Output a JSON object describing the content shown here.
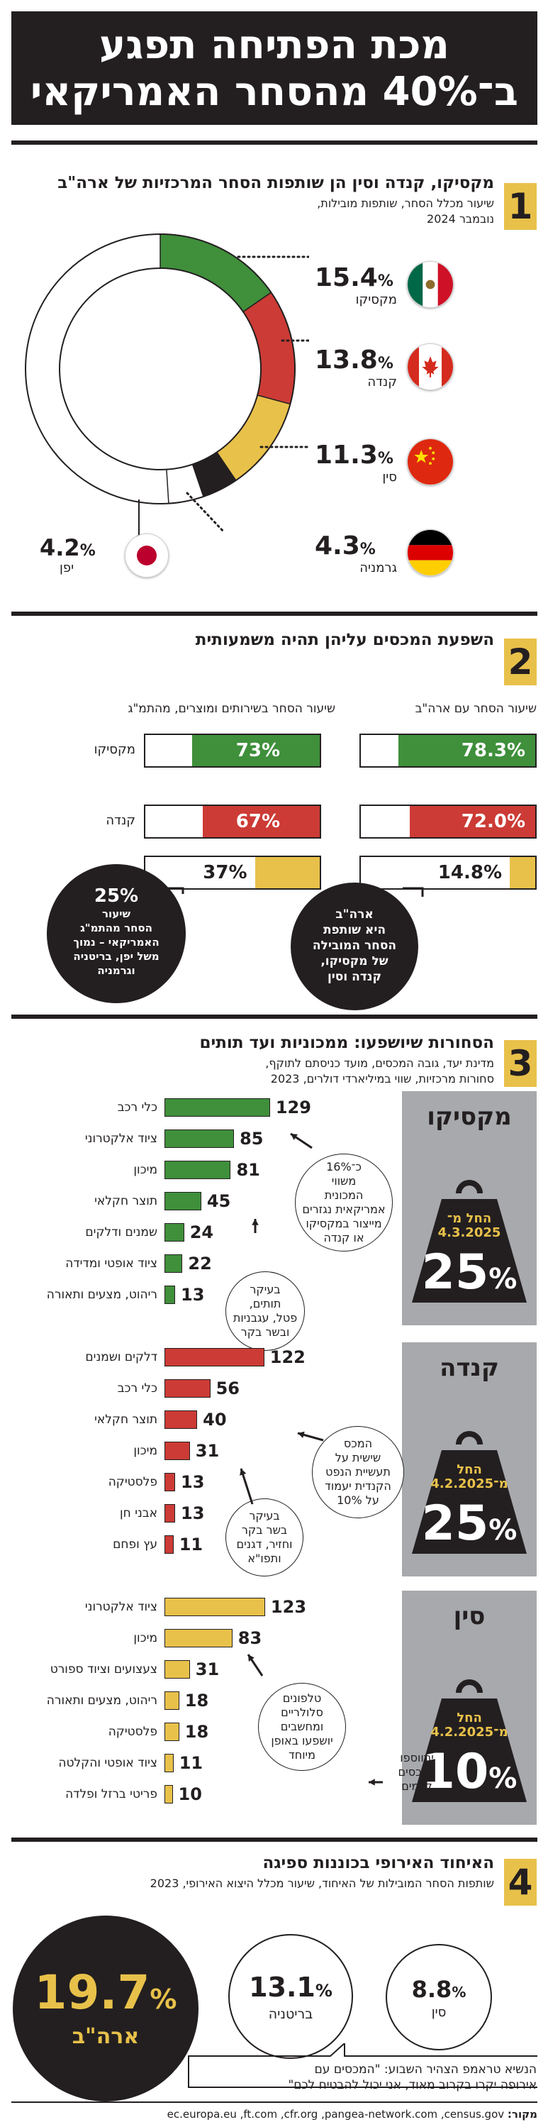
{
  "header": {
    "title_line1": "מכת הפתיחה תפגע",
    "title_line2": "ב־40% מהסחר האמריקאי"
  },
  "section1": {
    "number": "1",
    "title": "מקסיקו, קנדה וסין הן שותפות הסחר המרכזיות של ארה\"ב",
    "subtitle_line1": "שיעור מכלל הסחר, שותפות מובילות,",
    "subtitle_line2": "נובמבר 2024",
    "partners": [
      {
        "name": "מקסיקו",
        "value": "15.4",
        "flag": "mexico-flag"
      },
      {
        "name": "קנדה",
        "value": "13.8",
        "flag": "canada-flag"
      },
      {
        "name": "סין",
        "value": "11.3",
        "flag": "china-flag"
      },
      {
        "name": "גרמניה",
        "value": "4.3",
        "flag": "germany-flag"
      },
      {
        "name": "יפן",
        "value": "4.2",
        "flag": "japan-flag"
      }
    ],
    "percent_sign": "%"
  },
  "section2": {
    "number": "2",
    "title": "השפעת המכסים עליהן תהיה משמעותית",
    "col_us": "שיעור הסחר עם ארה\"ב",
    "col_gdp": "שיעור הסחר בשירותים ומוצרים, מהתמ\"ג",
    "rows": [
      {
        "country": "מקסיקו",
        "us": "78.3%",
        "gdp": "73%"
      },
      {
        "country": "קנדה",
        "us": "72.0%",
        "gdp": "67%"
      },
      {
        "country": "סין",
        "us": "14.8%",
        "gdp": "37%"
      }
    ],
    "bubble_left": [
      "25%",
      "שיעור",
      "הסחר מהתמ\"ג",
      "האמריקאי – נמוך",
      "משל יפן, בריטניה",
      "וגרמניה"
    ],
    "bubble_right": [
      "ארה\"ב",
      "היא שותפת",
      "הסחר המובילה",
      "של מקסיקו,",
      "קנדה וסין"
    ]
  },
  "section3": {
    "number": "3",
    "title": "הסחורות שיושפעו: ממכוניות ועד תותים",
    "subtitle_line1": "מדינת יעד, גובה המכסים, מועד כניסתם לתוקף,",
    "subtitle_line2": "סחורות מרכזיות, שווי במיליארדי דולרים, 2023",
    "groups": [
      {
        "country": "מקסיקו",
        "effective_label": "החל מ־",
        "effective_date": "4.3.2025",
        "tariff": "25",
        "items": [
          {
            "label": "כלי רכב",
            "value": 129
          },
          {
            "label": "ציוד אלקטרוני",
            "value": 85
          },
          {
            "label": "מיכון",
            "value": 81
          },
          {
            "label": "תוצר חקלאי",
            "value": 45
          },
          {
            "label": "שמנים ודלקים",
            "value": 24
          },
          {
            "label": "ציוד אופטי ומדידה",
            "value": 22
          },
          {
            "label": "ריהוט, מצעים ותאורה",
            "value": 13
          }
        ],
        "note1": [
          "כ־16%",
          "משווי",
          "המכונית",
          "אמריקאית נגזרים",
          "מייצור במקסיקו",
          "או קנדה"
        ],
        "note2": [
          "בעיקר",
          "תותים,",
          "פטל, עגבניות",
          "ובשר בקר"
        ]
      },
      {
        "country": "קנדה",
        "effective_label": "החל",
        "effective_date": "מ־4.2.2025",
        "tariff": "25",
        "items": [
          {
            "label": "דלקים ושמנים",
            "value": 122
          },
          {
            "label": "כלי רכב",
            "value": 56
          },
          {
            "label": "תוצר חקלאי",
            "value": 40
          },
          {
            "label": "מיכון",
            "value": 31
          },
          {
            "label": "פלסטיקה",
            "value": 13
          },
          {
            "label": "אבני חן",
            "value": 13
          },
          {
            "label": "עץ ופחם",
            "value": 11
          }
        ],
        "note1": [
          "המכס",
          "שישית על",
          "תעשיית הנפט",
          "הקנדית יעמוד",
          "על 10%"
        ],
        "note2": [
          "בעיקר",
          "בשר בקר",
          "וחזיר, דגנים",
          "ותפו\"א"
        ]
      },
      {
        "country": "סין",
        "effective_label": "החל",
        "effective_date": "מ־4.2.2025",
        "tariff": "10",
        "items": [
          {
            "label": "ציוד אלקטרוני",
            "value": 123
          },
          {
            "label": "מיכון",
            "value": 83
          },
          {
            "label": "צעצועים וציוד ספורט",
            "value": 31
          },
          {
            "label": "ריהוט, מצעים ותאורה",
            "value": 18
          },
          {
            "label": "פלסטיקה",
            "value": 18
          },
          {
            "label": "ציוד אופטי והקלטה",
            "value": 11
          },
          {
            "label": "פריטי ברזל ופלדה",
            "value": 10
          }
        ],
        "note1": [
          "טלפונים",
          "סלולריים",
          "ומחשבים",
          "יושפעו באופן",
          "מיוחד"
        ],
        "note2": [
          "יתווספו",
          "למכסים",
          "קיימים"
        ]
      }
    ],
    "percent_sign": "%"
  },
  "section4": {
    "number": "4",
    "title": "האיחוד האירופי בכוננות ספיגה",
    "subtitle": "שותפות הסחר המובילות של האיחוד, שיעור מכלל היצוא האירופי, 2023",
    "partners": [
      {
        "name": "ארה\"ב",
        "value": "19.7"
      },
      {
        "name": "בריטניה",
        "value": "13.1"
      },
      {
        "name": "סין",
        "value": "8.8"
      }
    ],
    "percent_sign": "%",
    "quote_line1": "הנשיא טראמפ הצהיר השבוע: \"המכסים עם",
    "quote_line2": "אירופה יקרו בקרוב מאוד, אני יכול להבטיח לכם\""
  },
  "source": {
    "label": "מקור:",
    "text": "ec.europa.eu ,ft.com ,cfr.org ,pangea-network.com ,census.gov"
  },
  "colors": {
    "green": "#3f8f3b",
    "red": "#cc3b35",
    "yellow": "#e8c14a",
    "gray": "#a7a9ac",
    "dark": "#231f20"
  },
  "chart_data": [
    {
      "type": "pie",
      "categories": [
        "מקסיקו",
        "קנדה",
        "סין",
        "גרמניה",
        "יפן"
      ],
      "values": [
        15.4,
        13.8,
        11.3,
        4.3,
        4.2
      ],
      "title": "מקסיקו, קנדה וסין הן שותפות הסחר המרכזיות של ארה\"ב",
      "unit": "%"
    },
    {
      "type": "bar",
      "categories": [
        "מקסיקו",
        "קנדה",
        "סין"
      ],
      "series": [
        {
          "name": "שיעור הסחר עם ארה\"ב",
          "values": [
            78.3,
            72.0,
            14.8
          ]
        },
        {
          "name": "שיעור הסחר בשירותים ומוצרים, מהתמ\"ג",
          "values": [
            73,
            67,
            37
          ]
        }
      ],
      "ylim": [
        0,
        100
      ],
      "title": "השפעת המכסים עליהן תהיה משמעותית"
    },
    {
      "type": "bar",
      "title": "הסחורות שיושפעו: ממכוניות ועד תותים",
      "series": [
        {
          "name": "מקסיקו",
          "categories": [
            "כלי רכב",
            "ציוד אלקטרוני",
            "מיכון",
            "תוצר חקלאי",
            "שמנים ודלקים",
            "ציוד אופטי ומדידה",
            "ריהוט, מצעים ותאורה"
          ],
          "values": [
            129,
            85,
            81,
            45,
            24,
            22,
            13
          ]
        },
        {
          "name": "קנדה",
          "categories": [
            "דלקים ושמנים",
            "כלי רכב",
            "תוצר חקלאי",
            "מיכון",
            "פלסטיקה",
            "אבני חן",
            "עץ ופחם"
          ],
          "values": [
            122,
            56,
            40,
            31,
            13,
            13,
            11
          ]
        },
        {
          "name": "סין",
          "categories": [
            "ציוד אלקטרוני",
            "מיכון",
            "צעצועים וציוד ספורט",
            "ריהוט, מצעים ותאורה",
            "פלסטיקה",
            "ציוד אופטי והקלטה",
            "פריטי ברזל ופלדה"
          ],
          "values": [
            123,
            83,
            31,
            18,
            18,
            11,
            10
          ]
        }
      ]
    },
    {
      "type": "scatter",
      "title": "האיחוד האירופי בכוננות ספיגה",
      "categories": [
        "ארה\"ב",
        "בריטניה",
        "סין"
      ],
      "values": [
        19.7,
        13.1,
        8.8
      ],
      "unit": "%"
    }
  ]
}
